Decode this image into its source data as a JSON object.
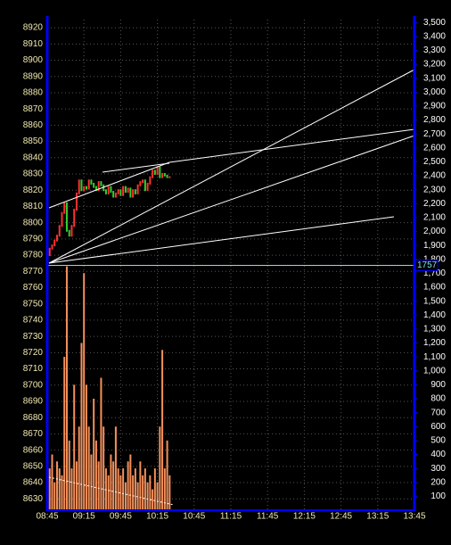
{
  "chart_data": {
    "type": "line",
    "xlim": [
      0,
      300
    ],
    "xticks": [
      {
        "value": 0,
        "label": "08:45"
      },
      {
        "value": 30,
        "label": "09:15"
      },
      {
        "value": 60,
        "label": "09:45"
      },
      {
        "value": 90,
        "label": "10:15"
      },
      {
        "value": 120,
        "label": "10:45"
      },
      {
        "value": 150,
        "label": "11:15"
      },
      {
        "value": 180,
        "label": "11:45"
      },
      {
        "value": 210,
        "label": "12:15"
      },
      {
        "value": 240,
        "label": "12:45"
      },
      {
        "value": 270,
        "label": "13:15"
      },
      {
        "value": 300,
        "label": "13:45"
      }
    ],
    "ylim": [
      8623,
      8925
    ],
    "yticks": [
      8630,
      8640,
      8650,
      8660,
      8670,
      8680,
      8690,
      8700,
      8710,
      8720,
      8730,
      8740,
      8750,
      8760,
      8770,
      8780,
      8790,
      8800,
      8810,
      8820,
      8830,
      8840,
      8850,
      8860,
      8870,
      8880,
      8890,
      8900,
      8910,
      8920
    ],
    "y2lim": [
      0,
      3520
    ],
    "y2ticks": [
      100,
      200,
      300,
      400,
      500,
      600,
      700,
      800,
      900,
      {
        "value": 1000,
        "label": "1,000"
      },
      {
        "value": 1100,
        "label": "1,100"
      },
      {
        "value": 1200,
        "label": "1,200"
      },
      {
        "value": 1300,
        "label": "1,300"
      },
      {
        "value": 1400,
        "label": "1,400"
      },
      {
        "value": 1500,
        "label": "1,500"
      },
      {
        "value": 1600,
        "label": "1,600"
      },
      {
        "value": 1700,
        "label": "1,700"
      },
      {
        "value": 1800,
        "label": "1,800"
      },
      {
        "value": 1900,
        "label": "1,900"
      },
      {
        "value": 2000,
        "label": "2,000"
      },
      {
        "value": 2100,
        "label": "2,100"
      },
      {
        "value": 2200,
        "label": "2,200"
      },
      {
        "value": 2300,
        "label": "2,300"
      },
      {
        "value": 2400,
        "label": "2,400"
      },
      {
        "value": 2500,
        "label": "2,500"
      },
      {
        "value": 2600,
        "label": "2,600"
      },
      {
        "value": 2700,
        "label": "2,700"
      },
      {
        "value": 2800,
        "label": "2,800"
      },
      {
        "value": 2900,
        "label": "2,900"
      },
      {
        "value": 3000,
        "label": "3,000"
      },
      {
        "value": 3100,
        "label": "3,100"
      },
      {
        "value": 3200,
        "label": "3,200"
      },
      {
        "value": 3300,
        "label": "3,300"
      },
      {
        "value": 3400,
        "label": "3,400"
      },
      {
        "value": 3500,
        "label": "3,500"
      }
    ],
    "grid": true,
    "x": [
      0,
      2,
      4,
      6,
      8,
      10,
      12,
      14,
      16,
      18,
      20,
      22,
      24,
      26,
      28,
      30,
      32,
      34,
      36,
      38,
      40,
      42,
      44,
      46,
      48,
      50,
      52,
      54,
      56,
      58,
      60,
      62,
      64,
      66,
      68,
      70,
      72,
      74,
      76,
      78,
      80,
      82,
      84,
      86,
      88,
      90,
      92,
      94,
      96,
      98,
      100
    ],
    "series": [
      {
        "type": "bar",
        "axis": "y2",
        "color": "#f4905a",
        "values": [
          650,
          300,
          400,
          200,
          350,
          300,
          250,
          1100,
          1750,
          500,
          300,
          900,
          350,
          600,
          1200,
          1700,
          900,
          600,
          400,
          800,
          500,
          350,
          950,
          600,
          300,
          250,
          400,
          350,
          600,
          300,
          250,
          300,
          200,
          350,
          400,
          250,
          300,
          200,
          350,
          250,
          300,
          200,
          250,
          150,
          300,
          200,
          600,
          1150,
          300,
          500,
          250
        ]
      },
      {
        "type": "line",
        "color": "#30d030",
        "up_color": "#ff3030",
        "values": [
          8780,
          8784,
          8786,
          8789,
          8792,
          8798,
          8806,
          8812,
          8795,
          8792,
          8798,
          8808,
          8818,
          8826,
          8820,
          8822,
          8821,
          8826,
          8824,
          8822,
          8820,
          8825,
          8823,
          8820,
          8818,
          8822,
          8819,
          8816,
          8818,
          8820,
          8817,
          8822,
          8819,
          8821,
          8816,
          8820,
          8818,
          8823,
          8825,
          8826,
          8820,
          8824,
          8828,
          8832,
          8830,
          8834,
          8828,
          8830,
          8829,
          8828,
          8828
        ]
      }
    ],
    "reference_line": {
      "value": 1757,
      "axis": "y2",
      "color": "#80e0e8"
    }
  }
}
